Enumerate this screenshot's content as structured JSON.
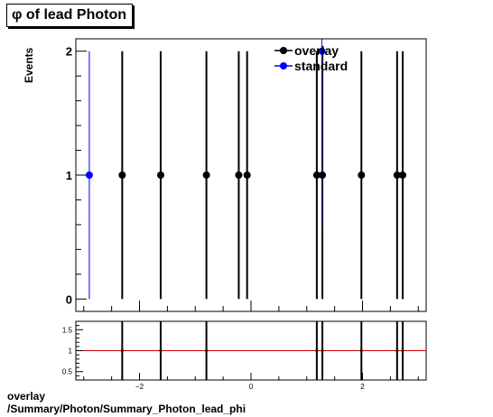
{
  "title": "φ of lead Photon",
  "footer": {
    "line1": "overlay",
    "line2": "/Summary/Photon/Summary_Photon_lead_phi"
  },
  "chart_data": [
    {
      "type": "scatter",
      "title": "φ of lead Photon",
      "xlabel": "",
      "ylabel": "Events",
      "xlim": [
        -3.1416,
        3.1416
      ],
      "ylim": [
        -0.1,
        2.1
      ],
      "yticks": [
        0,
        1,
        2
      ],
      "legend": "top-right",
      "series": [
        {
          "name": "overlay",
          "color": "#000000",
          "x": [
            -2.31,
            -1.62,
            -0.8,
            -0.22,
            -0.07,
            1.18,
            1.28,
            1.98,
            2.62,
            2.72
          ],
          "y": [
            1,
            1,
            1,
            1,
            1,
            1,
            1,
            1,
            1,
            1
          ],
          "yerr": [
            1,
            1,
            1,
            1,
            1,
            1,
            1,
            1,
            1,
            1
          ]
        },
        {
          "name": "standard",
          "color": "#0000ff",
          "x": [
            -2.9,
            1.27
          ],
          "y": [
            1,
            2
          ],
          "yerr": [
            1,
            1.414
          ]
        }
      ]
    },
    {
      "type": "scatter",
      "xlabel": "",
      "ylabel": "",
      "xlim": [
        -3.1416,
        3.1416
      ],
      "ylim": [
        0.3,
        1.7
      ],
      "xticks": [
        -2,
        0,
        2
      ],
      "yticks": [
        0.5,
        1,
        1.5
      ],
      "reference_line": 1,
      "reference_color": "#cc0000",
      "series": [
        {
          "name": "",
          "color": "#000000",
          "x": [
            -2.31,
            -1.62,
            -0.8,
            1.18,
            1.28,
            1.98,
            2.62,
            2.72
          ],
          "y": [
            1,
            1,
            1,
            1,
            1,
            1,
            1,
            1
          ]
        }
      ]
    }
  ]
}
